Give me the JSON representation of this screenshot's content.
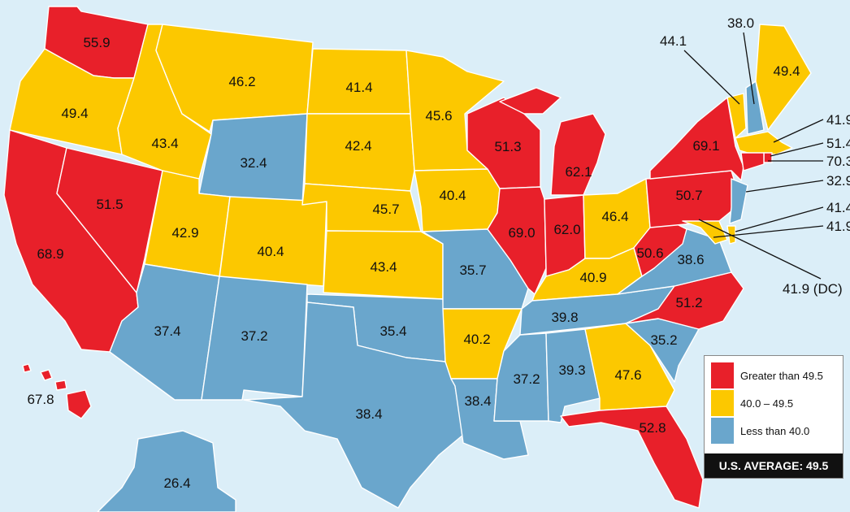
{
  "colors": {
    "high": "#e8202a",
    "mid": "#fcc800",
    "low": "#6aa6cc",
    "background": "#dbeef8"
  },
  "legend": {
    "high_label": "Greater than 49.5",
    "mid_label": "40.0 – 49.5",
    "low_label": "Less than 40.0",
    "average_label": "U.S. AVERAGE: 49.5"
  },
  "states": [
    {
      "name": "Washington",
      "value": "55.9",
      "category": "high"
    },
    {
      "name": "Oregon",
      "value": "49.4",
      "category": "mid"
    },
    {
      "name": "California",
      "value": "68.9",
      "category": "high"
    },
    {
      "name": "Nevada",
      "value": "51.5",
      "category": "high"
    },
    {
      "name": "Idaho",
      "value": "43.4",
      "category": "mid"
    },
    {
      "name": "Montana",
      "value": "46.2",
      "category": "mid"
    },
    {
      "name": "Wyoming",
      "value": "32.4",
      "category": "low"
    },
    {
      "name": "Utah",
      "value": "42.9",
      "category": "mid"
    },
    {
      "name": "Arizona",
      "value": "37.4",
      "category": "low"
    },
    {
      "name": "Colorado",
      "value": "40.4",
      "category": "mid"
    },
    {
      "name": "New Mexico",
      "value": "37.2",
      "category": "low"
    },
    {
      "name": "North Dakota",
      "value": "41.4",
      "category": "mid"
    },
    {
      "name": "South Dakota",
      "value": "42.4",
      "category": "mid"
    },
    {
      "name": "Nebraska",
      "value": "45.7",
      "category": "mid"
    },
    {
      "name": "Kansas",
      "value": "43.4",
      "category": "mid"
    },
    {
      "name": "Oklahoma",
      "value": "35.4",
      "category": "low"
    },
    {
      "name": "Texas",
      "value": "38.4",
      "category": "low"
    },
    {
      "name": "Minnesota",
      "value": "45.6",
      "category": "mid"
    },
    {
      "name": "Iowa",
      "value": "40.4",
      "category": "mid"
    },
    {
      "name": "Missouri",
      "value": "35.7",
      "category": "low"
    },
    {
      "name": "Arkansas",
      "value": "40.2",
      "category": "mid"
    },
    {
      "name": "Louisiana",
      "value": "38.4",
      "category": "low"
    },
    {
      "name": "Wisconsin",
      "value": "51.3",
      "category": "high"
    },
    {
      "name": "Illinois",
      "value": "69.0",
      "category": "high"
    },
    {
      "name": "Michigan",
      "value": "62.1",
      "category": "high"
    },
    {
      "name": "Indiana",
      "value": "62.0",
      "category": "high"
    },
    {
      "name": "Ohio",
      "value": "46.4",
      "category": "mid"
    },
    {
      "name": "Kentucky",
      "value": "40.9",
      "category": "mid"
    },
    {
      "name": "Tennessee",
      "value": "39.8",
      "category": "low"
    },
    {
      "name": "Mississippi",
      "value": "37.2",
      "category": "low"
    },
    {
      "name": "Alabama",
      "value": "39.3",
      "category": "low"
    },
    {
      "name": "Georgia",
      "value": "47.6",
      "category": "mid"
    },
    {
      "name": "Florida",
      "value": "52.8",
      "category": "high"
    },
    {
      "name": "South Carolina",
      "value": "35.2",
      "category": "low"
    },
    {
      "name": "North Carolina",
      "value": "51.2",
      "category": "high"
    },
    {
      "name": "Virginia",
      "value": "38.6",
      "category": "low"
    },
    {
      "name": "West Virginia",
      "value": "50.6",
      "category": "high"
    },
    {
      "name": "Pennsylvania",
      "value": "50.7",
      "category": "high"
    },
    {
      "name": "New York",
      "value": "69.1",
      "category": "high"
    },
    {
      "name": "Maine",
      "value": "49.4",
      "category": "mid"
    },
    {
      "name": "Alaska",
      "value": "26.4",
      "category": "low"
    },
    {
      "name": "Hawaii",
      "value": "67.8",
      "category": "high"
    },
    {
      "name": "Vermont",
      "value": "44.1",
      "category": "mid"
    },
    {
      "name": "New Hampshire",
      "value": "38.0",
      "category": "low"
    },
    {
      "name": "Massachusetts",
      "value": "41.9",
      "category": "mid"
    },
    {
      "name": "Rhode Island",
      "value": "51.4",
      "category": "high"
    },
    {
      "name": "Connecticut",
      "value": "70.3",
      "category": "high"
    },
    {
      "name": "New Jersey",
      "value": "32.9",
      "category": "low"
    },
    {
      "name": "Delaware",
      "value": "41.4",
      "category": "mid"
    },
    {
      "name": "Maryland",
      "value": "41.9",
      "category": "mid"
    },
    {
      "name": "District of Columbia",
      "value": "41.9 (DC)",
      "category": "mid"
    }
  ]
}
